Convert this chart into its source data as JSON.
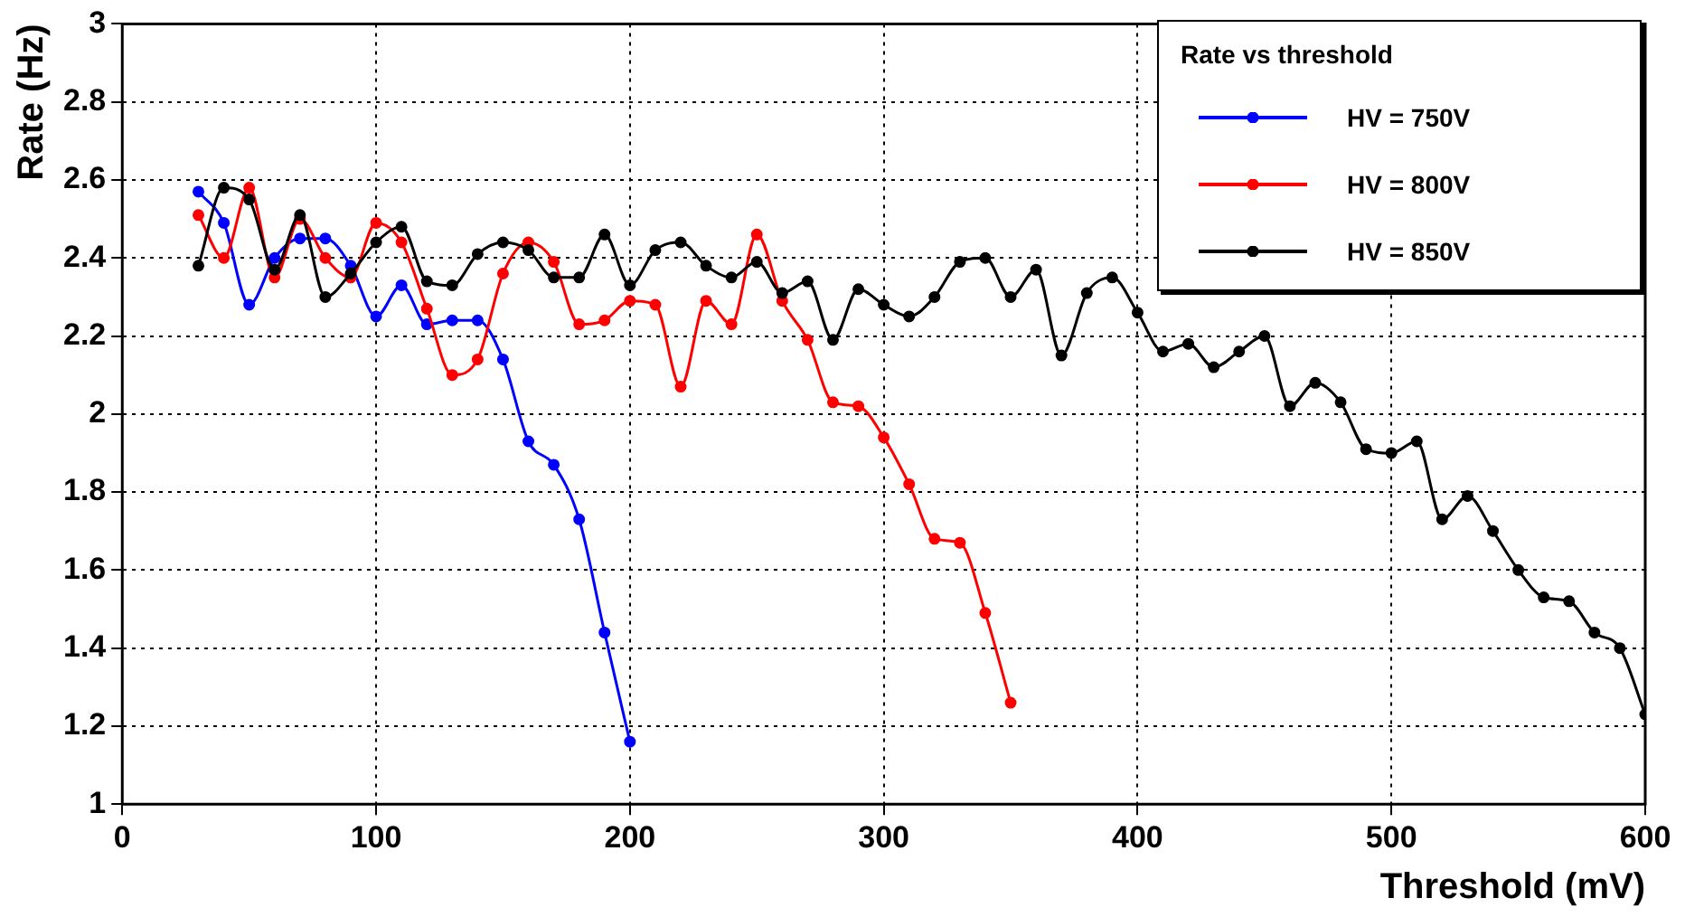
{
  "chart_data": {
    "type": "line",
    "xlabel": "Threshold (mV)",
    "ylabel": "Rate (Hz)",
    "legend_title": "Rate vs threshold",
    "xlim": [
      0,
      600
    ],
    "xticks": [
      0,
      100,
      200,
      300,
      400,
      500,
      600
    ],
    "ylim": [
      1,
      3
    ],
    "yticks": [
      1,
      1.2,
      1.4,
      1.6,
      1.8,
      2,
      2.2,
      2.4,
      2.6,
      2.8,
      3
    ],
    "grid": true,
    "legend": "top right",
    "marker": "circle",
    "line_style": "solid",
    "series": [
      {
        "name": "HV = 750V",
        "color": "#0000ff",
        "x": [
          30,
          40,
          50,
          60,
          70,
          80,
          90,
          100,
          110,
          120,
          130,
          140,
          150,
          160,
          170,
          180,
          190,
          200
        ],
        "values": [
          2.57,
          2.49,
          2.28,
          2.4,
          2.45,
          2.45,
          2.38,
          2.25,
          2.33,
          2.23,
          2.24,
          2.24,
          2.14,
          1.93,
          1.87,
          1.73,
          1.44,
          1.16
        ]
      },
      {
        "name": "HV = 800V",
        "color": "#ff0000",
        "x": [
          30,
          40,
          50,
          60,
          70,
          80,
          90,
          100,
          110,
          120,
          130,
          140,
          150,
          160,
          170,
          180,
          190,
          200,
          210,
          220,
          230,
          240,
          250,
          260,
          270,
          280,
          290,
          300,
          310,
          320,
          330,
          340,
          350
        ],
        "values": [
          2.51,
          2.4,
          2.58,
          2.35,
          2.5,
          2.4,
          2.35,
          2.49,
          2.44,
          2.27,
          2.1,
          2.14,
          2.36,
          2.44,
          2.39,
          2.23,
          2.24,
          2.29,
          2.28,
          2.07,
          2.29,
          2.23,
          2.46,
          2.29,
          2.19,
          2.03,
          2.02,
          1.94,
          1.82,
          1.68,
          1.67,
          1.49,
          1.26
        ]
      },
      {
        "name": "HV = 850V",
        "color": "#000000",
        "x": [
          30,
          40,
          50,
          60,
          70,
          80,
          90,
          100,
          110,
          120,
          130,
          140,
          150,
          160,
          170,
          180,
          190,
          200,
          210,
          220,
          230,
          240,
          250,
          260,
          270,
          280,
          290,
          300,
          310,
          320,
          330,
          340,
          350,
          360,
          370,
          380,
          390,
          400,
          410,
          420,
          430,
          440,
          450,
          460,
          470,
          480,
          490,
          500,
          510,
          520,
          530,
          540,
          550,
          560,
          570,
          580,
          590,
          600
        ],
        "values": [
          2.38,
          2.58,
          2.55,
          2.37,
          2.51,
          2.3,
          2.36,
          2.44,
          2.48,
          2.34,
          2.33,
          2.41,
          2.44,
          2.42,
          2.35,
          2.35,
          2.46,
          2.33,
          2.42,
          2.44,
          2.38,
          2.35,
          2.39,
          2.31,
          2.34,
          2.19,
          2.32,
          2.28,
          2.25,
          2.3,
          2.39,
          2.4,
          2.3,
          2.37,
          2.15,
          2.31,
          2.35,
          2.26,
          2.16,
          2.18,
          2.12,
          2.16,
          2.2,
          2.02,
          2.08,
          2.03,
          1.91,
          1.9,
          1.93,
          1.73,
          1.79,
          1.7,
          1.6,
          1.53,
          1.52,
          1.44,
          1.4,
          1.23
        ]
      }
    ]
  }
}
